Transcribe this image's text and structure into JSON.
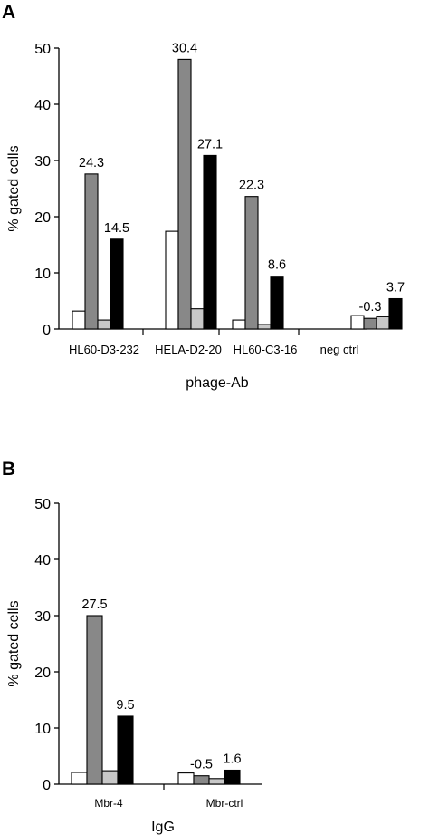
{
  "chart_data": [
    {
      "type": "bar",
      "panel": "A",
      "xlabel": "phage-Ab",
      "ylabel": "% gated cells",
      "ylim": [
        0,
        50
      ],
      "yticks": [
        "0",
        "10",
        "20",
        "30",
        "40",
        "50"
      ],
      "categories": [
        "HL60-D3-232",
        "HELA-D2-20",
        "HL60-C3-16",
        "neg ctrl"
      ],
      "series": [
        {
          "color": "#ffffff",
          "values": [
            3.2,
            17.4,
            1.6,
            2.4
          ]
        },
        {
          "color": "#888888",
          "values": [
            27.6,
            48.0,
            23.6,
            1.9
          ]
        },
        {
          "color": "#c8c8c8",
          "values": [
            1.6,
            3.6,
            0.8,
            2.2
          ]
        },
        {
          "color": "#000000",
          "values": [
            16.0,
            30.9,
            9.4,
            5.4
          ]
        }
      ],
      "data_labels": [
        {
          "text": "24.3",
          "category": 0,
          "series": 1
        },
        {
          "text": "14.5",
          "category": 0,
          "series": 3
        },
        {
          "text": "30.4",
          "category": 1,
          "series": 1
        },
        {
          "text": "27.1",
          "category": 1,
          "series": 3
        },
        {
          "text": "22.3",
          "category": 2,
          "series": 1
        },
        {
          "text": "8.6",
          "category": 2,
          "series": 3
        },
        {
          "text": "-0.3",
          "category": 3,
          "series": 1
        },
        {
          "text": "3.7",
          "category": 3,
          "series": 3
        }
      ],
      "grid": false
    },
    {
      "type": "bar",
      "panel": "B",
      "xlabel": "IgG",
      "ylabel": "% gated cells",
      "ylim": [
        0,
        50
      ],
      "yticks": [
        "0",
        "10",
        "20",
        "30",
        "40",
        "50"
      ],
      "categories": [
        "Mbr-4",
        "Mbr-ctrl"
      ],
      "series": [
        {
          "color": "#ffffff",
          "values": [
            2.1,
            2.0
          ]
        },
        {
          "color": "#888888",
          "values": [
            30.0,
            1.5
          ]
        },
        {
          "color": "#c8c8c8",
          "values": [
            2.4,
            1.0
          ]
        },
        {
          "color": "#000000",
          "values": [
            12.1,
            2.5
          ]
        }
      ],
      "data_labels": [
        {
          "text": "27.5",
          "category": 0,
          "series": 1
        },
        {
          "text": "9.5",
          "category": 0,
          "series": 3
        },
        {
          "text": "-0.5",
          "category": 1,
          "series": 1
        },
        {
          "text": "1.6",
          "category": 1,
          "series": 3
        }
      ],
      "grid": false
    }
  ]
}
